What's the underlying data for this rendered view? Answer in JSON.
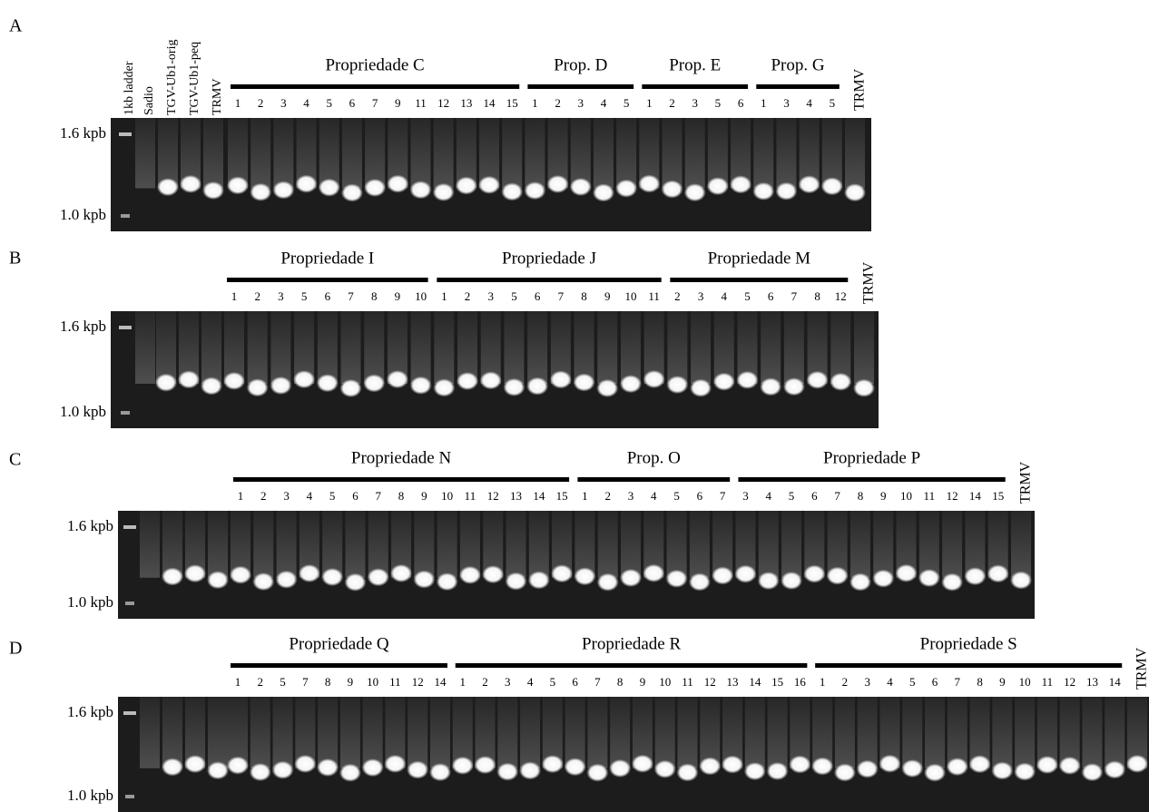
{
  "panels": [
    {
      "letter": "A",
      "size_labels": [
        "1.6 kpb",
        "1.0 kpb"
      ],
      "lane_labels": [
        "1kb ladder",
        "Sadio",
        "TGV-Ub1-orig",
        "TGV-Ub1-peq",
        "TRMV"
      ],
      "groups": [
        {
          "label": "Propriedade C",
          "lanes": [
            "1",
            "2",
            "3",
            "4",
            "5",
            "6",
            "7",
            "9",
            "11",
            "12",
            "13",
            "14",
            "15"
          ]
        },
        {
          "label": "Prop. D",
          "lanes": [
            "1",
            "2",
            "3",
            "4",
            "5"
          ]
        },
        {
          "label": "Prop. E",
          "lanes": [
            "1",
            "2",
            "3",
            "5",
            "6"
          ]
        },
        {
          "label": "Prop. G",
          "lanes": [
            "1",
            "3",
            "4",
            "5"
          ]
        }
      ],
      "control": "TRMV"
    },
    {
      "letter": "B",
      "size_labels": [
        "1.6 kpb",
        "1.0 kpb"
      ],
      "groups": [
        {
          "label": "Propriedade I",
          "lanes": [
            "1",
            "2",
            "3",
            "5",
            "6",
            "7",
            "8",
            "9",
            "10"
          ]
        },
        {
          "label": "Propriedade J",
          "lanes": [
            "1",
            "2",
            "3",
            "5",
            "6",
            "7",
            "8",
            "9",
            "10",
            "11"
          ]
        },
        {
          "label": "Propriedade M",
          "lanes": [
            "2",
            "3",
            "4",
            "5",
            "6",
            "7",
            "8",
            "12"
          ]
        }
      ],
      "control": "TRMV"
    },
    {
      "letter": "C",
      "size_labels": [
        "1.6 kpb",
        "1.0 kpb"
      ],
      "groups": [
        {
          "label": "Propriedade N",
          "lanes": [
            "1",
            "2",
            "3",
            "4",
            "5",
            "6",
            "7",
            "8",
            "9",
            "10",
            "11",
            "12",
            "13",
            "14",
            "15"
          ]
        },
        {
          "label": "Prop. O",
          "lanes": [
            "1",
            "2",
            "3",
            "4",
            "5",
            "6",
            "7"
          ]
        },
        {
          "label": "Propriedade P",
          "lanes": [
            "3",
            "4",
            "5",
            "6",
            "7",
            "8",
            "9",
            "10",
            "11",
            "12",
            "14",
            "15"
          ]
        }
      ],
      "control": "TRMV"
    },
    {
      "letter": "D",
      "size_labels": [
        "1.6 kpb",
        "1.0 kpb"
      ],
      "groups": [
        {
          "label": "Propriedade Q",
          "lanes": [
            "1",
            "2",
            "5",
            "7",
            "8",
            "9",
            "10",
            "11",
            "12",
            "14"
          ]
        },
        {
          "label": "Propriedade R",
          "lanes": [
            "1",
            "2",
            "3",
            "4",
            "5",
            "6",
            "7",
            "8",
            "9",
            "10",
            "11",
            "12",
            "13",
            "14",
            "15",
            "16"
          ]
        },
        {
          "label": "Propriedade S",
          "lanes": [
            "1",
            "2",
            "3",
            "4",
            "5",
            "6",
            "7",
            "8",
            "9",
            "10",
            "11",
            "12",
            "13",
            "14"
          ]
        }
      ],
      "control": "TRMV"
    }
  ]
}
